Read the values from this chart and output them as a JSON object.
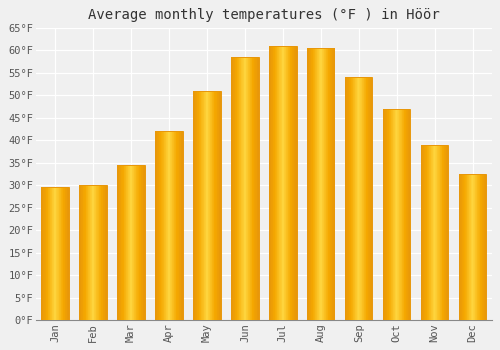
{
  "title": "Average monthly temperatures (°F ) in Höör",
  "months": [
    "Jan",
    "Feb",
    "Mar",
    "Apr",
    "May",
    "Jun",
    "Jul",
    "Aug",
    "Sep",
    "Oct",
    "Nov",
    "Dec"
  ],
  "values": [
    29.5,
    30.0,
    34.5,
    42.0,
    51.0,
    58.5,
    61.0,
    60.5,
    54.0,
    47.0,
    39.0,
    32.5
  ],
  "bar_color_edge": "#E8970A",
  "bar_color_center": "#FFD740",
  "bar_color_outer": "#F5A800",
  "ylim": [
    0,
    65
  ],
  "yticks": [
    0,
    5,
    10,
    15,
    20,
    25,
    30,
    35,
    40,
    45,
    50,
    55,
    60,
    65
  ],
  "ytick_labels": [
    "0°F",
    "5°F",
    "10°F",
    "15°F",
    "20°F",
    "25°F",
    "30°F",
    "35°F",
    "40°F",
    "45°F",
    "50°F",
    "55°F",
    "60°F",
    "65°F"
  ],
  "background_color": "#F0F0F0",
  "plot_bg_color": "#F0F0F0",
  "grid_color": "#FFFFFF",
  "title_fontsize": 10,
  "tick_fontsize": 7.5,
  "font_family": "monospace"
}
